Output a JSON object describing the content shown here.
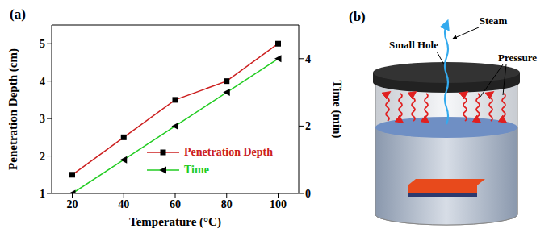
{
  "chart_data": {
    "type": "line",
    "title": "(a)",
    "x": [
      20,
      40,
      60,
      80,
      100
    ],
    "xlabel": "Temperature (°C)",
    "ylabel": "Penetration Depth (cm)",
    "y2label": "Time (min)",
    "xlim": [
      12,
      108
    ],
    "xticks": [
      20,
      40,
      60,
      80,
      100
    ],
    "ylim": [
      1,
      5.5
    ],
    "yticks": [
      1,
      2,
      3,
      4,
      5
    ],
    "y2lim": [
      0,
      5
    ],
    "y2ticks": [
      0,
      2,
      4
    ],
    "legend": "lower right",
    "grid": false,
    "series": [
      {
        "name": "Penetration Depth",
        "color": "#cc2020",
        "marker": "square",
        "values": [
          1.5,
          2.5,
          3.5,
          4,
          5
        ]
      },
      {
        "name": "Time",
        "color": "#22cc22",
        "marker": "triangle",
        "axis": "y2",
        "values": [
          0,
          1,
          2,
          3,
          4
        ]
      }
    ]
  },
  "diagram": {
    "title": "(b)",
    "labels": {
      "hole": "Small Hole",
      "steam": "Steam",
      "pressure": "Pressure"
    }
  }
}
